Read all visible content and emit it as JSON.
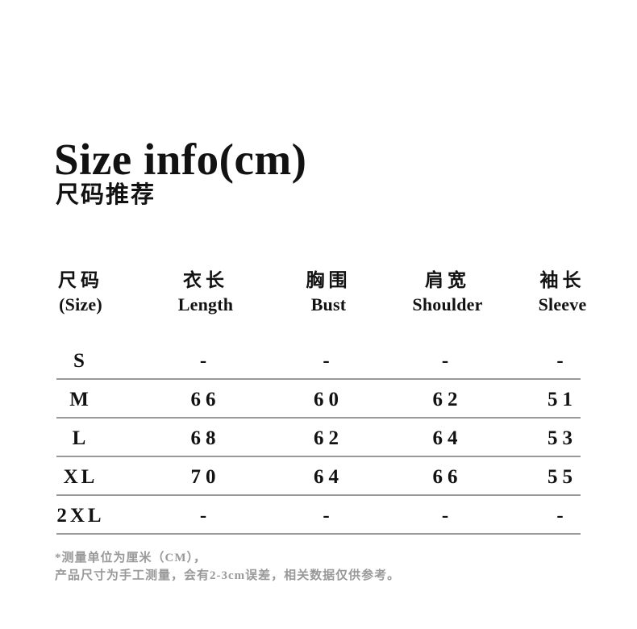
{
  "page": {
    "background": "#ffffff",
    "text_color": "#121212",
    "muted_color": "#999999",
    "divider_color": "#999999"
  },
  "header": {
    "title": "Size info(cm)",
    "subtitle": "尺码推荐"
  },
  "table": {
    "columns": [
      {
        "zh": "尺码",
        "en": "(Size)"
      },
      {
        "zh": "衣长",
        "en": "Length"
      },
      {
        "zh": "胸围",
        "en": "Bust"
      },
      {
        "zh": "肩宽",
        "en": "Shoulder"
      },
      {
        "zh": "袖长",
        "en": "Sleeve"
      }
    ],
    "rows": [
      {
        "size": "S",
        "values": [
          "-",
          "-",
          "-",
          "-"
        ]
      },
      {
        "size": "M",
        "values": [
          "66",
          "60",
          "62",
          "51"
        ]
      },
      {
        "size": "L",
        "values": [
          "68",
          "62",
          "64",
          "53"
        ]
      },
      {
        "size": "XL",
        "values": [
          "70",
          "64",
          "66",
          "55"
        ]
      },
      {
        "size": "2XL",
        "values": [
          "-",
          "-",
          "-",
          "-"
        ]
      }
    ]
  },
  "footnotes": [
    "*测量单位为厘米（CM），",
    "产品尺寸为手工测量，会有2-3cm误差，相关数据仅供参考。"
  ]
}
